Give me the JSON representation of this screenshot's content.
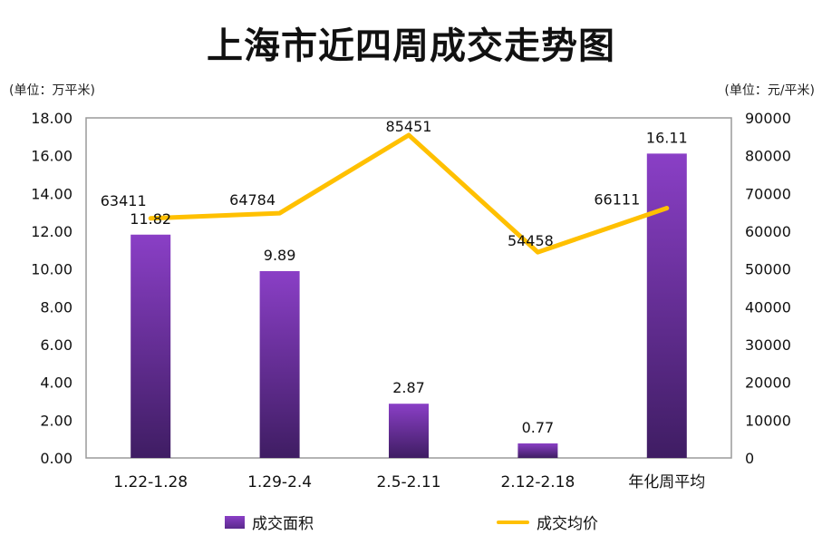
{
  "title": "上海市近四周成交走势图",
  "left_unit": "(单位：万平米)",
  "right_unit": "(单位：元/平米)",
  "chart_data": {
    "type": "bar",
    "categories": [
      "1.22-1.28",
      "1.29-2.4",
      "2.5-2.11",
      "2.12-2.18",
      "年化周平均"
    ],
    "series": [
      {
        "name": "成交面积",
        "type": "bar",
        "axis": "left",
        "color": "#7030a0",
        "values": [
          11.82,
          9.89,
          2.87,
          0.77,
          16.11
        ],
        "labels": [
          "11.82",
          "9.89",
          "2.87",
          "0.77",
          "16.11"
        ]
      },
      {
        "name": "成交均价",
        "type": "line",
        "axis": "right",
        "color": "#ffc000",
        "values": [
          63411,
          64784,
          85451,
          54458,
          66111
        ],
        "labels": [
          "63411",
          "64784",
          "85451",
          "54458",
          "66111"
        ]
      }
    ],
    "left_axis": {
      "min": 0,
      "max": 18,
      "step": 2,
      "ticks": [
        "0.00",
        "2.00",
        "4.00",
        "6.00",
        "8.00",
        "10.00",
        "12.00",
        "14.00",
        "16.00",
        "18.00"
      ]
    },
    "right_axis": {
      "min": 0,
      "max": 90000,
      "step": 10000,
      "ticks": [
        "0",
        "10000",
        "20000",
        "30000",
        "40000",
        "50000",
        "60000",
        "70000",
        "80000",
        "90000"
      ]
    },
    "legend_position": "bottom",
    "grid": false
  }
}
